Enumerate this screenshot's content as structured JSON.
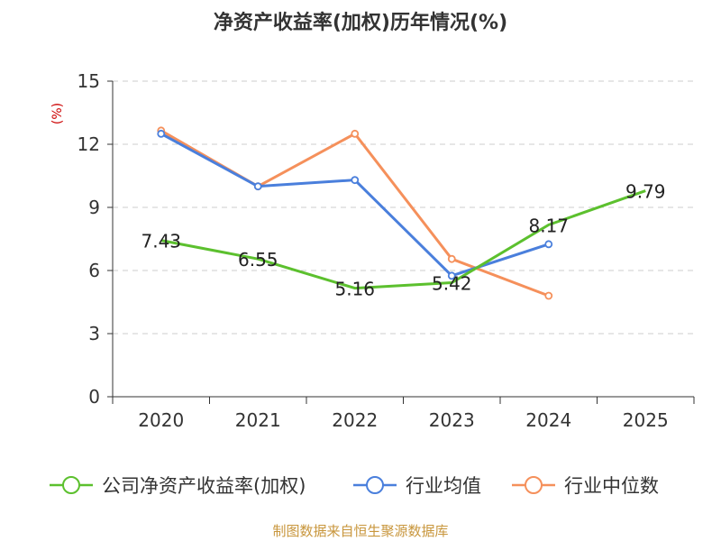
{
  "chart_data": {
    "type": "line",
    "title": "净资产收益率(加权)历年情况(%)",
    "ylabel": "(%)",
    "xlabel": "",
    "categories": [
      "2020",
      "2021",
      "2022",
      "2023",
      "2024",
      "2025"
    ],
    "ylim": [
      0,
      15
    ],
    "yticks": [
      0,
      3,
      6,
      9,
      12,
      15
    ],
    "grid": true,
    "legend_position": "bottom",
    "series": [
      {
        "name": "公司净资产收益率(加权)",
        "color": "#5cc02e",
        "values": [
          7.43,
          6.55,
          5.16,
          5.42,
          8.17,
          9.79
        ],
        "labels": [
          "7.43",
          "6.55",
          "5.16",
          "5.42",
          "8.17",
          "9.79"
        ]
      },
      {
        "name": "行业均值",
        "color": "#4a7fdc",
        "values": [
          12.5,
          10.0,
          10.3,
          5.75,
          7.25,
          null
        ]
      },
      {
        "name": "行业中位数",
        "color": "#f5905b",
        "values": [
          12.65,
          10.0,
          12.5,
          6.55,
          4.8,
          null
        ]
      }
    ]
  },
  "footer": {
    "source": "制图数据来自恒生聚源数据库"
  }
}
